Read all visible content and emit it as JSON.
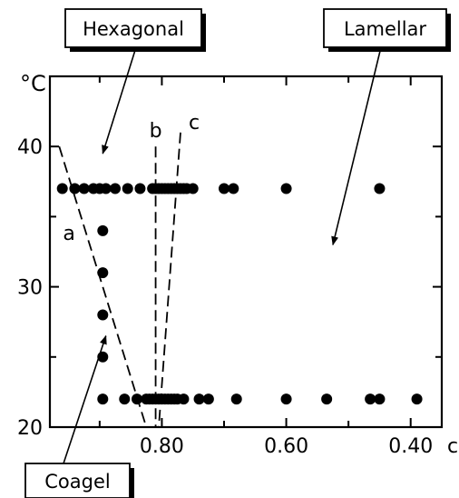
{
  "chart_data": {
    "type": "scatter",
    "title": "",
    "xlabel": "c",
    "ylabel": "°C",
    "xlim": [
      0.98,
      0.35
    ],
    "ylim": [
      20,
      45
    ],
    "x_ticks": [
      {
        "value": 0.8,
        "label": "0.80"
      },
      {
        "value": 0.6,
        "label": "0.60"
      },
      {
        "value": 0.4,
        "label": "0.40"
      }
    ],
    "y_ticks": [
      {
        "value": 20,
        "label": "20"
      },
      {
        "value": 30,
        "label": "30"
      },
      {
        "value": 40,
        "label": "40"
      }
    ],
    "x_minor_ticks": [
      0.9,
      0.7,
      0.5
    ],
    "y_minor_ticks": [
      25,
      35
    ],
    "points": [
      {
        "x": 0.96,
        "y": 37
      },
      {
        "x": 0.94,
        "y": 37
      },
      {
        "x": 0.925,
        "y": 37
      },
      {
        "x": 0.91,
        "y": 37
      },
      {
        "x": 0.9,
        "y": 37
      },
      {
        "x": 0.89,
        "y": 37
      },
      {
        "x": 0.875,
        "y": 37
      },
      {
        "x": 0.855,
        "y": 37
      },
      {
        "x": 0.835,
        "y": 37
      },
      {
        "x": 0.815,
        "y": 37
      },
      {
        "x": 0.81,
        "y": 37
      },
      {
        "x": 0.805,
        "y": 37
      },
      {
        "x": 0.8,
        "y": 37
      },
      {
        "x": 0.795,
        "y": 37
      },
      {
        "x": 0.79,
        "y": 37
      },
      {
        "x": 0.785,
        "y": 37
      },
      {
        "x": 0.78,
        "y": 37
      },
      {
        "x": 0.775,
        "y": 37
      },
      {
        "x": 0.77,
        "y": 37
      },
      {
        "x": 0.765,
        "y": 37
      },
      {
        "x": 0.76,
        "y": 37
      },
      {
        "x": 0.75,
        "y": 37
      },
      {
        "x": 0.7,
        "y": 37
      },
      {
        "x": 0.685,
        "y": 37
      },
      {
        "x": 0.6,
        "y": 37
      },
      {
        "x": 0.45,
        "y": 37
      },
      {
        "x": 0.895,
        "y": 34
      },
      {
        "x": 0.895,
        "y": 31
      },
      {
        "x": 0.895,
        "y": 28
      },
      {
        "x": 0.895,
        "y": 25
      },
      {
        "x": 0.895,
        "y": 22
      },
      {
        "x": 0.86,
        "y": 22
      },
      {
        "x": 0.84,
        "y": 22
      },
      {
        "x": 0.825,
        "y": 22
      },
      {
        "x": 0.82,
        "y": 22
      },
      {
        "x": 0.815,
        "y": 22
      },
      {
        "x": 0.81,
        "y": 22
      },
      {
        "x": 0.805,
        "y": 22
      },
      {
        "x": 0.8,
        "y": 22
      },
      {
        "x": 0.795,
        "y": 22
      },
      {
        "x": 0.79,
        "y": 22
      },
      {
        "x": 0.785,
        "y": 22
      },
      {
        "x": 0.78,
        "y": 22
      },
      {
        "x": 0.775,
        "y": 22
      },
      {
        "x": 0.765,
        "y": 22
      },
      {
        "x": 0.74,
        "y": 22
      },
      {
        "x": 0.725,
        "y": 22
      },
      {
        "x": 0.68,
        "y": 22
      },
      {
        "x": 0.6,
        "y": 22
      },
      {
        "x": 0.535,
        "y": 22
      },
      {
        "x": 0.465,
        "y": 22
      },
      {
        "x": 0.45,
        "y": 22
      },
      {
        "x": 0.39,
        "y": 22
      }
    ],
    "boundary_lines": [
      {
        "label": "a",
        "x1": 0.965,
        "y1": 40,
        "x2": 0.825,
        "y2": 20
      },
      {
        "label": "b",
        "x1": 0.81,
        "y1": 40,
        "x2": 0.81,
        "y2": 20
      },
      {
        "label": "c",
        "x1": 0.77,
        "y1": 41,
        "x2": 0.805,
        "y2": 20
      }
    ],
    "regions": [
      {
        "label": "Hexagonal",
        "box": "top-left",
        "arrow_to": {
          "x": 0.895,
          "y": 39.5
        }
      },
      {
        "label": "Lamellar",
        "box": "top-right",
        "arrow_to": {
          "x": 0.525,
          "y": 33
        }
      },
      {
        "label": "Coagel",
        "box": "bottom-left",
        "arrow_to": {
          "x": 0.89,
          "y": 26.5
        }
      }
    ],
    "colors": {
      "marker": "#000000",
      "lines": "#000000"
    }
  }
}
